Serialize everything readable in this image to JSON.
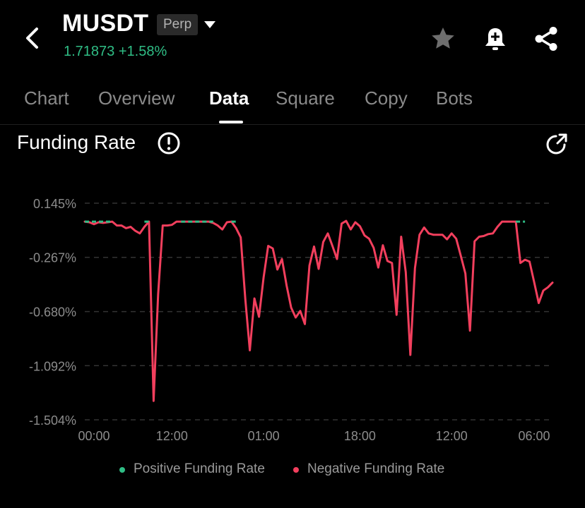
{
  "header": {
    "symbol": "MUSDT",
    "badge": "Perp",
    "price": "1.71873",
    "change": "+1.58%",
    "back_icon": "back-arrow-icon",
    "dropdown_icon": "caret-down-icon",
    "favorite_icon": "star-icon",
    "alert_icon": "bell-plus-icon",
    "share_icon": "share-icon"
  },
  "tabs": [
    {
      "label": "Chart"
    },
    {
      "label": "Overview"
    },
    {
      "label": "Data",
      "active": true
    },
    {
      "label": "Square"
    },
    {
      "label": "Copy"
    },
    {
      "label": "Bots"
    }
  ],
  "section": {
    "title": "Funding Rate",
    "info_icon": "info-icon",
    "expand_icon": "open-external-icon"
  },
  "colors": {
    "positive": "#2fbd85",
    "negative": "#f23f5d",
    "background": "#000000",
    "grid": "#333333",
    "axis_text": "#8c8c8c"
  },
  "legend": {
    "positive": "Positive Funding Rate",
    "negative": "Negative Funding Rate"
  },
  "chart_data": {
    "type": "line",
    "title": "Funding Rate",
    "xlabel": "",
    "ylabel": "",
    "y_tick_labels": [
      "0.145%",
      "-0.267%",
      "-0.680%",
      "-1.092%",
      "-1.504%"
    ],
    "y_ticks": [
      0.145,
      -0.267,
      -0.68,
      -1.092,
      -1.504
    ],
    "ylim": [
      -1.504,
      0.145
    ],
    "x_tick_labels": [
      "00:00",
      "12:00",
      "01:00",
      "18:00",
      "12:00",
      "06:00"
    ],
    "x_tick_index": [
      2,
      19,
      39,
      60,
      80,
      98
    ],
    "grid": true,
    "legend_position": "bottom",
    "series": [
      {
        "name": "Positive Funding Rate",
        "values": [
          0.005,
          0.005,
          0.005,
          0.005,
          0.005,
          0.005,
          0.005,
          null,
          null,
          null,
          null,
          null,
          null,
          0.005,
          0.005,
          null,
          null,
          null,
          null,
          null,
          null,
          0.005,
          0.005,
          0.005,
          0.005,
          0.005,
          0.005,
          0.005,
          0.005,
          null,
          null,
          null,
          0.005,
          0.005,
          null,
          null,
          null,
          null,
          null,
          null,
          null,
          null,
          null,
          null,
          null,
          null,
          null,
          null,
          null,
          null,
          null,
          null,
          null,
          null,
          null,
          null,
          null,
          null,
          null,
          null,
          null,
          null,
          null,
          null,
          null,
          null,
          null,
          null,
          null,
          null,
          null,
          null,
          null,
          null,
          null,
          null,
          null,
          null,
          null,
          null,
          null,
          null,
          null,
          null,
          null,
          null,
          null,
          null,
          null,
          null,
          null,
          null,
          null,
          null,
          0.005,
          0.005,
          0.005,
          null,
          null,
          null,
          null,
          null,
          null,
          null,
          null
        ]
      },
      {
        "name": "Negative Funding Rate",
        "values": [
          0.005,
          0.0,
          -0.015,
          0.0,
          -0.005,
          0.0,
          0.005,
          -0.025,
          -0.025,
          -0.045,
          -0.035,
          -0.065,
          -0.085,
          -0.035,
          0.005,
          -1.36,
          -0.55,
          -0.025,
          -0.025,
          -0.02,
          0.005,
          0.005,
          0.005,
          0.005,
          0.005,
          0.005,
          0.005,
          0.005,
          -0.005,
          -0.025,
          -0.055,
          0.0,
          0.005,
          -0.045,
          -0.115,
          -0.585,
          -0.975,
          -0.58,
          -0.72,
          -0.42,
          -0.18,
          -0.2,
          -0.36,
          -0.28,
          -0.48,
          -0.65,
          -0.725,
          -0.675,
          -0.775,
          -0.33,
          -0.185,
          -0.355,
          -0.15,
          -0.085,
          -0.18,
          -0.28,
          -0.01,
          0.01,
          -0.055,
          0.0,
          -0.03,
          -0.1,
          -0.125,
          -0.195,
          -0.345,
          -0.175,
          -0.295,
          -0.31,
          -0.705,
          -0.11,
          -0.38,
          -1.01,
          -0.35,
          -0.095,
          -0.04,
          -0.085,
          -0.095,
          -0.095,
          -0.095,
          -0.13,
          -0.085,
          -0.125,
          -0.255,
          -0.39,
          -0.825,
          -0.145,
          -0.11,
          -0.105,
          -0.09,
          -0.085,
          -0.035,
          0.005,
          0.005,
          0.005,
          0.005,
          -0.31,
          -0.285,
          -0.3,
          -0.455,
          -0.615,
          -0.52,
          -0.495,
          -0.46
        ]
      }
    ]
  }
}
